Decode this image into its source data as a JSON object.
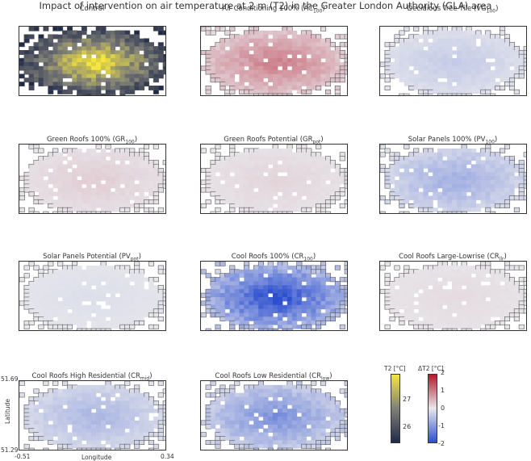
{
  "title": "Impact of intervention on air temperature at 2 m (T2) in the Greater London Authority (GLA) area",
  "chart_data": {
    "type": "heatmap",
    "xlabel": "Longitude",
    "ylabel": "Latitude",
    "xlim": [
      -0.51,
      0.34
    ],
    "ylim": [
      51.29,
      51.69
    ],
    "x_ticks": [
      "-0.51",
      "0.34"
    ],
    "y_ticks": [
      "51.69",
      "51.29"
    ],
    "panels": [
      {
        "name": "Control",
        "sub": "",
        "scale": "T2",
        "intensity": 27.4
      },
      {
        "name": "Air Conditioning 100% (AC",
        "sub": "100",
        "suffix": ")",
        "scale": "dT2",
        "intensity": 0.8
      },
      {
        "name": "Decidious Tree Tile (VG",
        "sub": "100",
        "suffix": ")",
        "scale": "dT2",
        "intensity": -0.3
      },
      {
        "name": "Green Roofs 100% (GR",
        "sub": "100",
        "suffix": ")",
        "scale": "dT2",
        "intensity": 0.2
      },
      {
        "name": "Green Roofs Potential (GR",
        "sub": "pot",
        "suffix": ")",
        "scale": "dT2",
        "intensity": 0.15
      },
      {
        "name": "Solar Panels 100% (PV",
        "sub": "100",
        "suffix": ")",
        "scale": "dT2",
        "intensity": -0.6
      },
      {
        "name": "Solar Panels Potential (PV",
        "sub": "pot",
        "suffix": ")",
        "scale": "dT2",
        "intensity": -0.1
      },
      {
        "name": "Cool Roofs 100% (CR",
        "sub": "100",
        "suffix": ")",
        "scale": "dT2",
        "intensity": -1.6
      },
      {
        "name": "Cool Roofs Large-Lowrise (CR",
        "sub": "llr",
        "suffix": ")",
        "scale": "dT2",
        "intensity": 0.1
      },
      {
        "name": "Cool Roofs High Residential (CR",
        "sub": "mid",
        "suffix": ")",
        "scale": "dT2",
        "intensity": -0.5
      },
      {
        "name": "Cool Roofs Low Residential (CR",
        "sub": "low",
        "suffix": ")",
        "scale": "dT2",
        "intensity": -0.9
      }
    ],
    "colorbars": [
      {
        "name": "T2 [°C]",
        "min": 25.3,
        "max": 27.7,
        "ticks": [
          26,
          27
        ],
        "colormap": "cividis"
      },
      {
        "name": "ΔT2 [°C]",
        "min": -2,
        "max": 2,
        "ticks": [
          -2,
          -1,
          0,
          1,
          2
        ],
        "colormap": "coolwarm"
      }
    ]
  },
  "colors": {
    "warm": "#b2182b",
    "cool": "#2c4fd0",
    "neutral": "#e8e8ec",
    "t2_high": "#f5e63b",
    "t2_low": "#1f2a4a"
  }
}
